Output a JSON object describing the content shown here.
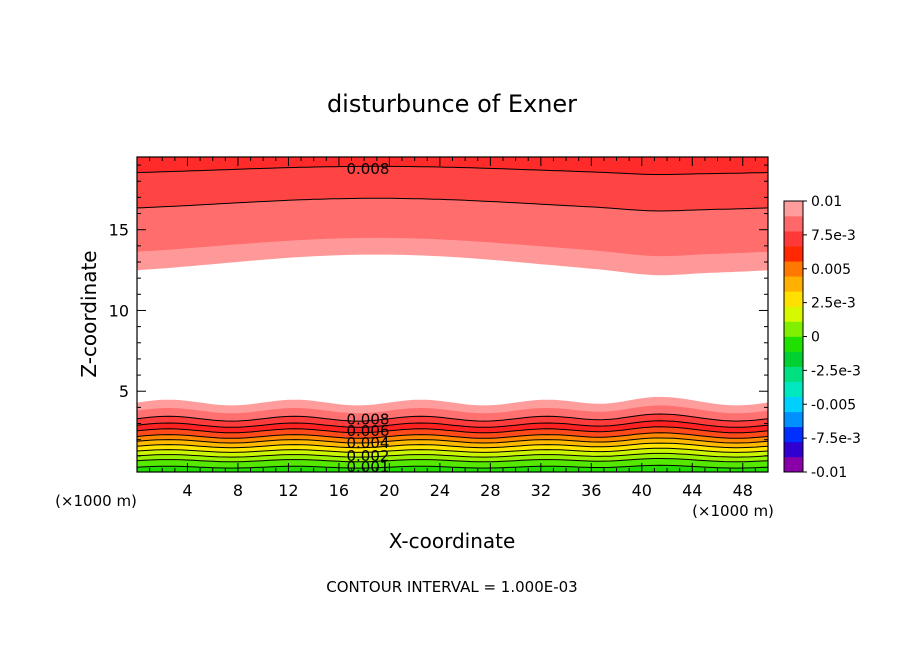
{
  "chart_data": {
    "type": "heatmap",
    "title": "disturbunce of Exner",
    "xlabel": "X-coordinate",
    "ylabel": "Z-coordinate",
    "x_unit": "(×1000 m)",
    "xlim": [
      0,
      50
    ],
    "ylim": [
      0,
      19.5
    ],
    "x_ticks": [
      "4",
      "8",
      "12",
      "16",
      "20",
      "24",
      "28",
      "32",
      "36",
      "40",
      "44",
      "48"
    ],
    "y_ticks": [
      "5",
      "10",
      "15"
    ],
    "contour_interval_text": "CONTOUR INTERVAL = 1.000E-03",
    "contour_labels": [
      "0.008",
      "0.008",
      "0.006",
      "0.004",
      "0.002",
      "0.001"
    ],
    "colorbar": {
      "labels": [
        "0.01",
        "7.5e-3",
        "0.005",
        "2.5e-3",
        "0",
        "-2.5e-3",
        "-0.005",
        "-7.5e-3",
        "-0.01"
      ],
      "colors": [
        "#8a00a8",
        "#3000d0",
        "#0030ff",
        "#0090ff",
        "#00d0ff",
        "#00e8c0",
        "#00e080",
        "#00d030",
        "#20e000",
        "#80f000",
        "#d8f800",
        "#ffe000",
        "#ffb000",
        "#ff7800",
        "#ff2800",
        "#ff3838",
        "#ff6868",
        "#ff9c9c"
      ]
    },
    "bands": {
      "top": {
        "colors": [
          "#ff2a2a",
          "#ff4444",
          "#ff6d6d",
          "#ff9999"
        ],
        "depths_km": [
          0.8,
          2.9,
          5.5,
          6.6
        ]
      },
      "bottom": {
        "colors": [
          "#22dd00",
          "#55e800",
          "#99f000",
          "#ccf500",
          "#ffe600",
          "#ffba00",
          "#ff8800",
          "#ff4a1a",
          "#ff2222",
          "#ff3c3c",
          "#ff7070",
          "#ff9c9c"
        ],
        "tops_km": [
          0.3,
          0.7,
          1.0,
          1.3,
          1.6,
          1.9,
          2.2,
          2.55,
          2.9,
          3.3,
          3.8,
          4.3
        ]
      }
    }
  }
}
